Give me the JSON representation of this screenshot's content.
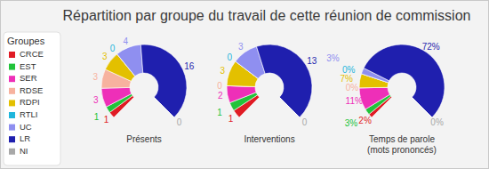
{
  "chart_data": {
    "type": "pie",
    "title": "Répartition par groupe du travail de cette réunion de commission",
    "legend_title": "Groupes",
    "legend": "left",
    "data_labels": true,
    "categories": [
      "CRCE",
      "EST",
      "SER",
      "RDSE",
      "RDPI",
      "RTLI",
      "UC",
      "LR",
      "NI"
    ],
    "colors": [
      "#e01b24",
      "#22c33a",
      "#ee2fb8",
      "#f7b29f",
      "#e3c000",
      "#1fb6dc",
      "#8f8ff0",
      "#1f1fae",
      "#a8a8a8"
    ],
    "series": [
      {
        "name": "Présents",
        "values": [
          1,
          1,
          3,
          3,
          3,
          0,
          4,
          16,
          0
        ]
      },
      {
        "name": "Interventions",
        "values": [
          1,
          1,
          2,
          0,
          3,
          0,
          3,
          13,
          0
        ]
      },
      {
        "name": "Temps de parole\n(mots prononcés)",
        "values": [
          2,
          3,
          11,
          0,
          7,
          0,
          3,
          72,
          0
        ],
        "value_labels": [
          "2%",
          "3%",
          "11%",
          "0%",
          "7%",
          "0%",
          "3%",
          "72%",
          "0%"
        ]
      }
    ]
  }
}
